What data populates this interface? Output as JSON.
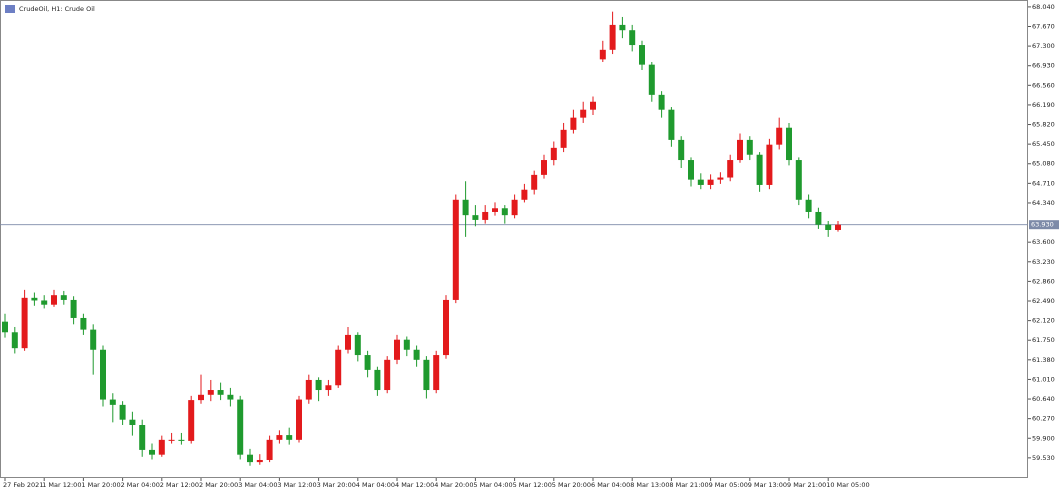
{
  "chart_data": {
    "type": "candlestick",
    "title": "CrudeOil, H1: Crude Oil",
    "categories": [
      "27 Feb 2021",
      null,
      null,
      null,
      "1 Mar 12:00",
      null,
      null,
      null,
      "1 Mar 20:00",
      null,
      null,
      null,
      "2 Mar 04:00",
      null,
      null,
      null,
      "2 Mar 12:00",
      null,
      null,
      null,
      "2 Mar 20:00",
      null,
      null,
      null,
      "3 Mar 04:00",
      null,
      null,
      null,
      "3 Mar 12:00",
      null,
      null,
      null,
      "3 Mar 20:00",
      null,
      null,
      null,
      "4 Mar 04:00",
      null,
      null,
      null,
      "4 Mar 12:00",
      null,
      null,
      null,
      "4 Mar 20:00",
      null,
      null,
      null,
      "5 Mar 04:00",
      null,
      null,
      null,
      "5 Mar 12:00",
      null,
      null,
      null,
      "5 Mar 20:00",
      null,
      null,
      null,
      "6 Mar 04:00",
      null,
      null,
      null,
      "8 Mar 13:00",
      null,
      null,
      null,
      "8 Mar 21:00",
      null,
      null,
      null,
      "9 Mar 05:00",
      null,
      null,
      null,
      "9 Mar 13:00",
      null,
      null,
      null,
      "9 Mar 21:00",
      null,
      null,
      null,
      "10 Mar 05:00",
      null
    ],
    "open": [
      62.1,
      61.9,
      61.6,
      62.55,
      62.5,
      62.42,
      62.6,
      62.51,
      62.17,
      61.95,
      61.57,
      60.63,
      60.53,
      60.25,
      60.15,
      59.68,
      59.59,
      59.87,
      59.87,
      59.85,
      60.62,
      60.72,
      60.81,
      60.72,
      60.63,
      59.59,
      59.45,
      59.49,
      59.87,
      59.96,
      59.87,
      60.63,
      61.0,
      60.81,
      60.9,
      61.57,
      61.85,
      61.47,
      61.19,
      60.81,
      61.38,
      61.76,
      61.57,
      61.38,
      60.81,
      61.47,
      62.51,
      64.4,
      64.11,
      64.02,
      64.17,
      64.24,
      64.11,
      64.4,
      64.59,
      64.87,
      65.15,
      65.38,
      65.72,
      65.95,
      66.1,
      67.05,
      67.23,
      67.7,
      67.6,
      67.32,
      66.95,
      66.38,
      66.1,
      65.53,
      65.15,
      64.78,
      64.68,
      64.78,
      64.82,
      65.15,
      65.53,
      65.25,
      64.68,
      65.44,
      65.76,
      65.15,
      64.4,
      64.17,
      63.93,
      63.83
    ],
    "high": [
      62.25,
      62.0,
      62.7,
      62.65,
      62.6,
      62.7,
      62.68,
      62.58,
      62.25,
      62.05,
      61.65,
      60.75,
      60.6,
      60.4,
      60.25,
      59.8,
      59.95,
      60.0,
      60.0,
      60.7,
      61.1,
      61.0,
      60.95,
      60.85,
      60.7,
      59.7,
      59.6,
      59.95,
      60.05,
      60.1,
      60.7,
      61.1,
      61.05,
      61.0,
      61.65,
      62.0,
      61.9,
      61.55,
      61.25,
      61.45,
      61.85,
      61.82,
      61.65,
      61.45,
      61.55,
      62.6,
      64.5,
      64.75,
      64.3,
      64.3,
      64.35,
      64.3,
      64.5,
      64.7,
      64.95,
      65.25,
      65.5,
      65.85,
      66.1,
      66.25,
      66.35,
      67.4,
      67.95,
      67.85,
      67.7,
      67.4,
      67.0,
      66.45,
      66.15,
      65.6,
      65.2,
      64.9,
      64.88,
      64.92,
      65.25,
      65.65,
      65.6,
      65.3,
      65.55,
      65.95,
      65.85,
      65.2,
      64.5,
      64.25,
      64.0,
      64.0
    ],
    "low": [
      61.8,
      61.5,
      61.55,
      62.4,
      62.35,
      62.38,
      62.42,
      62.05,
      61.85,
      61.1,
      60.5,
      60.2,
      60.15,
      59.95,
      59.55,
      59.5,
      59.55,
      59.8,
      59.78,
      59.8,
      60.55,
      60.6,
      60.62,
      60.5,
      59.5,
      59.38,
      59.4,
      59.45,
      59.8,
      59.78,
      59.82,
      60.55,
      60.6,
      60.7,
      60.85,
      61.5,
      61.35,
      61.05,
      60.7,
      60.75,
      61.3,
      61.45,
      61.25,
      60.65,
      60.75,
      61.4,
      62.45,
      63.7,
      63.9,
      63.95,
      64.1,
      63.95,
      64.05,
      64.35,
      64.5,
      64.8,
      65.05,
      65.3,
      65.65,
      65.85,
      66.0,
      67.0,
      67.15,
      67.45,
      67.2,
      66.85,
      66.25,
      65.95,
      65.4,
      65.0,
      64.65,
      64.6,
      64.6,
      64.7,
      64.75,
      65.1,
      65.15,
      64.55,
      64.6,
      65.35,
      65.05,
      64.3,
      64.05,
      63.85,
      63.7,
      63.8
    ],
    "close": [
      61.9,
      61.6,
      62.55,
      62.5,
      62.42,
      62.6,
      62.51,
      62.17,
      61.95,
      61.57,
      60.63,
      60.53,
      60.25,
      60.15,
      59.68,
      59.59,
      59.87,
      59.87,
      59.85,
      60.62,
      60.72,
      60.81,
      60.72,
      60.63,
      59.59,
      59.45,
      59.49,
      59.87,
      59.96,
      59.87,
      60.63,
      61.0,
      60.81,
      60.9,
      61.57,
      61.85,
      61.47,
      61.19,
      60.81,
      61.38,
      61.76,
      61.57,
      61.38,
      60.81,
      61.47,
      62.51,
      64.4,
      64.11,
      64.02,
      64.17,
      64.24,
      64.11,
      64.4,
      64.59,
      64.87,
      65.15,
      65.38,
      65.72,
      65.95,
      66.1,
      66.25,
      67.23,
      67.7,
      67.6,
      67.32,
      66.95,
      66.38,
      66.1,
      65.53,
      65.15,
      64.78,
      64.68,
      64.78,
      64.82,
      65.15,
      65.53,
      65.25,
      64.68,
      65.44,
      65.76,
      65.15,
      64.4,
      64.17,
      63.93,
      63.83,
      63.93
    ],
    "up_color": "#e31a1c",
    "down_color": "#1f9a2e",
    "last_price": {
      "value": 63.93,
      "label": "63.930"
    },
    "ylim": [
      59.15,
      68.17
    ],
    "yticks": [
      {
        "value": 68.04,
        "label": "68.040"
      },
      {
        "value": 67.67,
        "label": "67.670"
      },
      {
        "value": 67.3,
        "label": "67.300"
      },
      {
        "value": 66.93,
        "label": "66.930"
      },
      {
        "value": 66.56,
        "label": "66.560"
      },
      {
        "value": 66.19,
        "label": "66.190"
      },
      {
        "value": 65.82,
        "label": "65.820"
      },
      {
        "value": 65.45,
        "label": "65.450"
      },
      {
        "value": 65.08,
        "label": "65.080"
      },
      {
        "value": 64.71,
        "label": "64.710"
      },
      {
        "value": 64.34,
        "label": "64.340"
      },
      {
        "value": 63.6,
        "label": "63.600"
      },
      {
        "value": 63.23,
        "label": "63.230"
      },
      {
        "value": 62.86,
        "label": "62.860"
      },
      {
        "value": 62.49,
        "label": "62.490"
      },
      {
        "value": 62.12,
        "label": "62.120"
      },
      {
        "value": 61.75,
        "label": "61.750"
      },
      {
        "value": 61.38,
        "label": "61.380"
      },
      {
        "value": 61.01,
        "label": "61.010"
      },
      {
        "value": 60.64,
        "label": "60.640"
      },
      {
        "value": 60.27,
        "label": "60.270"
      },
      {
        "value": 59.9,
        "label": "59.900"
      },
      {
        "value": 59.53,
        "label": "59.530"
      }
    ]
  }
}
